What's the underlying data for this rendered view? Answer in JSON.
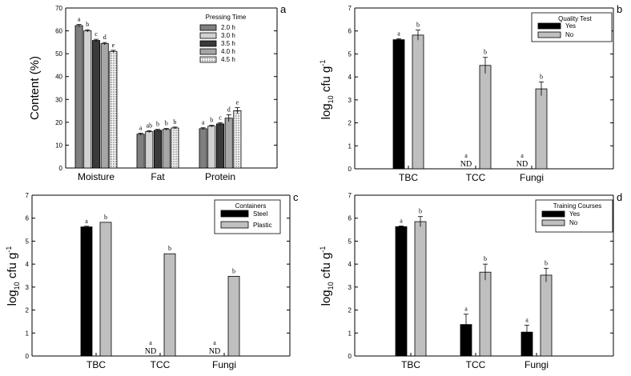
{
  "chart_data": [
    {
      "panel": "a",
      "type": "bar",
      "title": "",
      "ylabel": "Content (%)",
      "xlabel": "",
      "ylim": [
        0,
        70
      ],
      "yticks": [
        0,
        10,
        20,
        30,
        40,
        50,
        60,
        70
      ],
      "categories": [
        "Moisture",
        "Fat",
        "Protein"
      ],
      "legend_title": "Pressing Time",
      "legend_position": "top-right",
      "series": [
        {
          "name": "2.0 h",
          "values": [
            62.3,
            14.8,
            17.2
          ],
          "errors": [
            0.5,
            0.4,
            0.4
          ],
          "letters": [
            "a",
            "a",
            "a"
          ],
          "color": "#7f7f7f"
        },
        {
          "name": "3.0 h",
          "values": [
            60.0,
            15.9,
            18.3
          ],
          "errors": [
            0.5,
            0.4,
            0.4
          ],
          "letters": [
            "b",
            "ab",
            "b"
          ],
          "color": "#d2d2d2"
        },
        {
          "name": "3.5 h",
          "values": [
            55.8,
            16.5,
            19.3
          ],
          "errors": [
            0.5,
            0.4,
            0.5
          ],
          "letters": [
            "c",
            "b",
            "c"
          ],
          "color": "#3a3a3a"
        },
        {
          "name": "4.0 h",
          "values": [
            54.4,
            16.9,
            21.8
          ],
          "errors": [
            0.5,
            0.4,
            1.5
          ],
          "letters": [
            "d",
            "b",
            "d"
          ],
          "color": "#a6a6a6"
        },
        {
          "name": "4.5 h",
          "values": [
            51.0,
            17.5,
            25.1
          ],
          "errors": [
            0.5,
            0.4,
            1.3
          ],
          "letters": [
            "e",
            "b",
            "e"
          ],
          "color": "#f2f2f2",
          "pattern": "dots"
        }
      ]
    },
    {
      "panel": "b",
      "type": "bar",
      "title": "",
      "ylabel": "log10 cfu g-1",
      "ylabel_parts": {
        "base": "log",
        "sub": "10",
        "mid": " cfu g",
        "sup": "-1"
      },
      "xlabel": "",
      "ylim": [
        0,
        7
      ],
      "yticks": [
        0,
        1,
        2,
        3,
        4,
        5,
        6,
        7
      ],
      "categories": [
        "TBC",
        "TCC",
        "Fungi"
      ],
      "legend_title": "Quality Test",
      "legend_position": "top-right",
      "series": [
        {
          "name": "Yes",
          "values": [
            5.62,
            0,
            0
          ],
          "errors": [
            0.04,
            0,
            0
          ],
          "letters": [
            "a",
            "a",
            "a"
          ],
          "nd": [
            false,
            true,
            true
          ],
          "color": "#000000"
        },
        {
          "name": "No",
          "values": [
            5.82,
            4.5,
            3.48
          ],
          "errors": [
            0.22,
            0.35,
            0.3
          ],
          "letters": [
            "b",
            "b",
            "b"
          ],
          "nd": [
            false,
            false,
            false
          ],
          "color": "#bfbfbf"
        }
      ]
    },
    {
      "panel": "c",
      "type": "bar",
      "title": "",
      "ylabel": "log10 cfu g-1",
      "ylabel_parts": {
        "base": "log",
        "sub": "10",
        "mid": " cfu g",
        "sup": "-1"
      },
      "xlabel": "",
      "ylim": [
        0,
        7
      ],
      "yticks": [
        0,
        1,
        2,
        3,
        4,
        5,
        6,
        7
      ],
      "categories": [
        "TBC",
        "TCC",
        "Fungi"
      ],
      "legend_title": "Containers",
      "legend_position": "top-right",
      "series": [
        {
          "name": "Steel",
          "values": [
            5.62,
            0,
            0
          ],
          "errors": [
            0.03,
            0,
            0
          ],
          "letters": [
            "a",
            "a",
            "a"
          ],
          "nd": [
            false,
            true,
            true
          ],
          "color": "#000000"
        },
        {
          "name": "Plastic",
          "values": [
            5.82,
            4.45,
            3.47
          ],
          "errors": [
            0,
            0,
            0
          ],
          "letters": [
            "b",
            "b",
            "b"
          ],
          "nd": [
            false,
            false,
            false
          ],
          "color": "#bfbfbf"
        }
      ]
    },
    {
      "panel": "d",
      "type": "bar",
      "title": "",
      "ylabel": "log10 cfu g-1",
      "ylabel_parts": {
        "base": "log",
        "sub": "10",
        "mid": " cfu g",
        "sup": "-1"
      },
      "xlabel": "",
      "ylim": [
        0,
        7
      ],
      "yticks": [
        0,
        1,
        2,
        3,
        4,
        5,
        6,
        7
      ],
      "categories": [
        "TBC",
        "TCC",
        "Fungi"
      ],
      "legend_title": "Training Courses",
      "legend_position": "top-right",
      "series": [
        {
          "name": "Yes",
          "values": [
            5.63,
            1.37,
            1.04
          ],
          "errors": [
            0.03,
            0.45,
            0.3
          ],
          "letters": [
            "a",
            "a",
            "a"
          ],
          "nd": [
            false,
            false,
            false
          ],
          "color": "#000000"
        },
        {
          "name": "No",
          "values": [
            5.85,
            3.65,
            3.52
          ],
          "errors": [
            0.22,
            0.35,
            0.3
          ],
          "letters": [
            "b",
            "b",
            "b"
          ],
          "nd": [
            false,
            false,
            false
          ],
          "color": "#bfbfbf"
        }
      ]
    }
  ],
  "nd_label": "ND"
}
